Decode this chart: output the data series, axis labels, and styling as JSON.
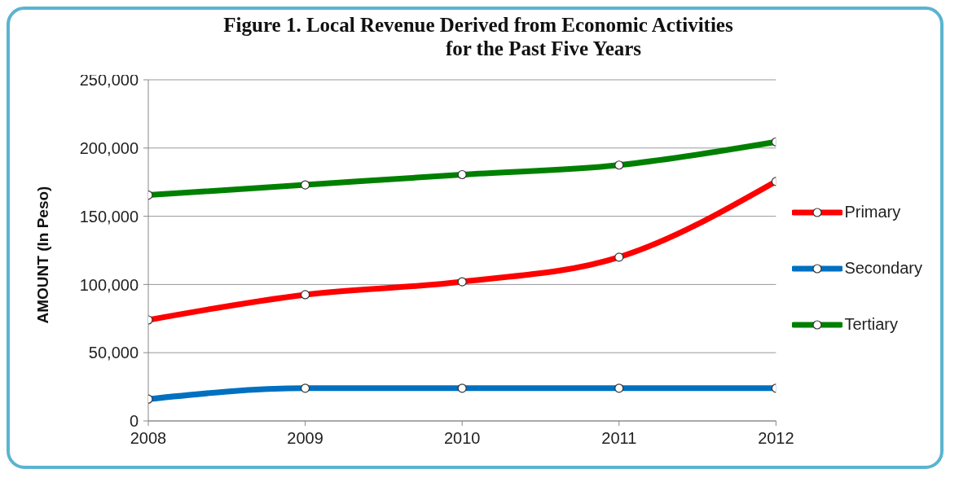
{
  "chart_data": {
    "type": "line",
    "title": "Figure 1. Local Revenue Derived from Economic Activities\nfor the Past Five Years",
    "ylabel": "AMOUNT (In Peso)",
    "x": [
      2008,
      2009,
      2010,
      2011,
      2012
    ],
    "series": [
      {
        "name": "Primary",
        "color": "#ff0000",
        "values": [
          74000,
          92500,
          102000,
          120000,
          175500
        ]
      },
      {
        "name": "Secondary",
        "color": "#0070c0",
        "values": [
          16000,
          24000,
          24000,
          24000,
          24000
        ]
      },
      {
        "name": "Tertiary",
        "color": "#008000",
        "values": [
          165500,
          173000,
          180500,
          187500,
          204500
        ]
      }
    ],
    "xlim": [
      2008,
      2012
    ],
    "xticks": [
      2008,
      2009,
      2010,
      2011,
      2012
    ],
    "ylim": [
      0,
      250000
    ],
    "yticks": [
      0,
      {
        "value": 50000,
        "label": "50,000"
      },
      {
        "value": 100000,
        "label": "100,000"
      },
      {
        "value": 150000,
        "label": "150,000"
      },
      {
        "value": 200000,
        "label": "200,000"
      },
      {
        "value": 250000,
        "label": "250,000"
      }
    ],
    "grid": "y",
    "legend": "right",
    "marker": "circle",
    "line_style": "solid"
  }
}
